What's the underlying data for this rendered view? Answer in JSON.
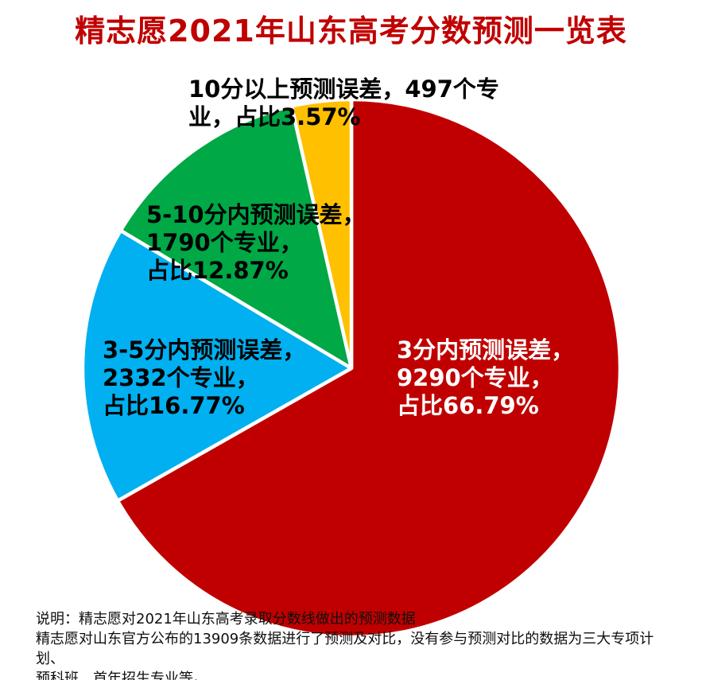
{
  "title": {
    "text": "精志愿2021年山东高考分数预测一览表",
    "color": "#C00000"
  },
  "chart_data": {
    "type": "pie",
    "title": "精志愿2021年山东高考分数预测一览表",
    "start_angle_deg": 0,
    "direction": "clockwise",
    "legend_position": "none",
    "slices": [
      {
        "name": "3分内预测误差",
        "majors": 9290,
        "percent": 66.79,
        "color": "#C00000",
        "label_color": "#FFFFFF",
        "label_lines": [
          "3分内预测误差，",
          "9290个专业，",
          "占比66.79%"
        ]
      },
      {
        "name": "3-5分内预测误差",
        "majors": 2332,
        "percent": 16.77,
        "color": "#00B0F0",
        "label_color": "#000000",
        "label_lines": [
          "3-5分内预测误差，",
          "2332个专业，",
          "占比16.77%"
        ]
      },
      {
        "name": "5-10分内预测误差",
        "majors": 1790,
        "percent": 12.87,
        "color": "#00A846",
        "label_color": "#000000",
        "label_lines": [
          "5-10分内预测误差，",
          "1790个专业，",
          "占比12.87%"
        ]
      },
      {
        "name": "10分以上预测误差",
        "majors": 497,
        "percent": 3.57,
        "color": "#FFC000",
        "label_color": "#000000",
        "label_lines": [
          "10分以上预测误差，497个专",
          "业，占比3.57%"
        ]
      }
    ],
    "separator_color": "#FFFFFF"
  },
  "footnote": {
    "line1": "说明：精志愿对2021年山东高考录取分数线做出的预测数据",
    "line2": "精志愿对山东官方公布的13909条数据进行了预测及对比，没有参与预测对比的数据为三大专项计划、",
    "line3": "预科班、首年招生专业等。"
  }
}
